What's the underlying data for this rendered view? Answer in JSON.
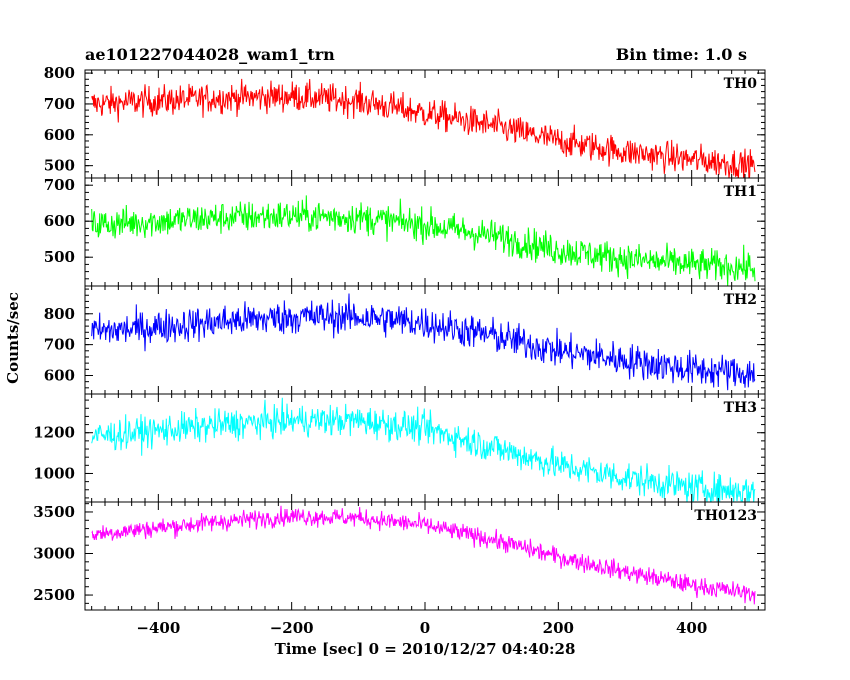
{
  "header": {
    "left_title": "ae101227044028_wam1_trn",
    "right_title": "Bin time: 1.0 s"
  },
  "axes": {
    "xlabel": "Time [sec] 0 = 2010/12/27 04:40:28",
    "ylabel": "Counts/sec"
  },
  "chart_data": {
    "type": "line",
    "title": "ae101227044028_wam1_trn",
    "subtitle": "Bin time: 1.0 s",
    "xlabel": "Time [sec] 0 = 2010/12/27 04:40:28",
    "ylabel": "Counts/sec",
    "xlim": [
      -510,
      510
    ],
    "x_ticks": [
      -400,
      -200,
      0,
      200,
      400
    ],
    "x_range": [
      -500,
      495
    ],
    "grid": false,
    "panels": [
      {
        "name": "TH0",
        "color": "#ff0000",
        "ylim": [
          460,
          810
        ],
        "y_ticks": [
          500,
          600,
          700,
          800
        ],
        "trend_x": [
          -500,
          -300,
          -200,
          -100,
          0,
          100,
          200,
          300,
          400,
          495
        ],
        "trend_y": [
          700,
          720,
          725,
          710,
          670,
          630,
          580,
          545,
          520,
          500
        ],
        "noise": 35
      },
      {
        "name": "TH1",
        "color": "#00ff00",
        "ylim": [
          420,
          720
        ],
        "y_ticks": [
          500,
          600,
          700
        ],
        "trend_x": [
          -500,
          -300,
          -200,
          -100,
          0,
          100,
          200,
          300,
          400,
          495
        ],
        "trend_y": [
          590,
          610,
          615,
          610,
          590,
          560,
          520,
          495,
          480,
          470
        ],
        "noise": 32
      },
      {
        "name": "TH2",
        "color": "#0000ff",
        "ylim": [
          540,
          890
        ],
        "y_ticks": [
          600,
          700,
          800
        ],
        "trend_x": [
          -500,
          -300,
          -200,
          -100,
          0,
          100,
          200,
          300,
          400,
          495
        ],
        "trend_y": [
          740,
          775,
          790,
          790,
          770,
          730,
          680,
          650,
          620,
          605
        ],
        "noise": 40
      },
      {
        "name": "TH3",
        "color": "#00ffff",
        "ylim": [
          860,
          1390
        ],
        "y_ticks": [
          1000,
          1200
        ],
        "trend_x": [
          -500,
          -300,
          -200,
          -100,
          0,
          100,
          200,
          300,
          400,
          495
        ],
        "trend_y": [
          1180,
          1240,
          1260,
          1260,
          1220,
          1130,
          1040,
          980,
          930,
          910
        ],
        "noise": 55
      },
      {
        "name": "TH0123",
        "color": "#ff00ff",
        "ylim": [
          2320,
          3620
        ],
        "y_ticks": [
          2500,
          3000,
          3500
        ],
        "trend_x": [
          -500,
          -300,
          -200,
          -100,
          0,
          100,
          200,
          300,
          400,
          495
        ],
        "trend_y": [
          3230,
          3390,
          3450,
          3430,
          3340,
          3170,
          2960,
          2780,
          2620,
          2510
        ],
        "noise": 80
      }
    ]
  }
}
